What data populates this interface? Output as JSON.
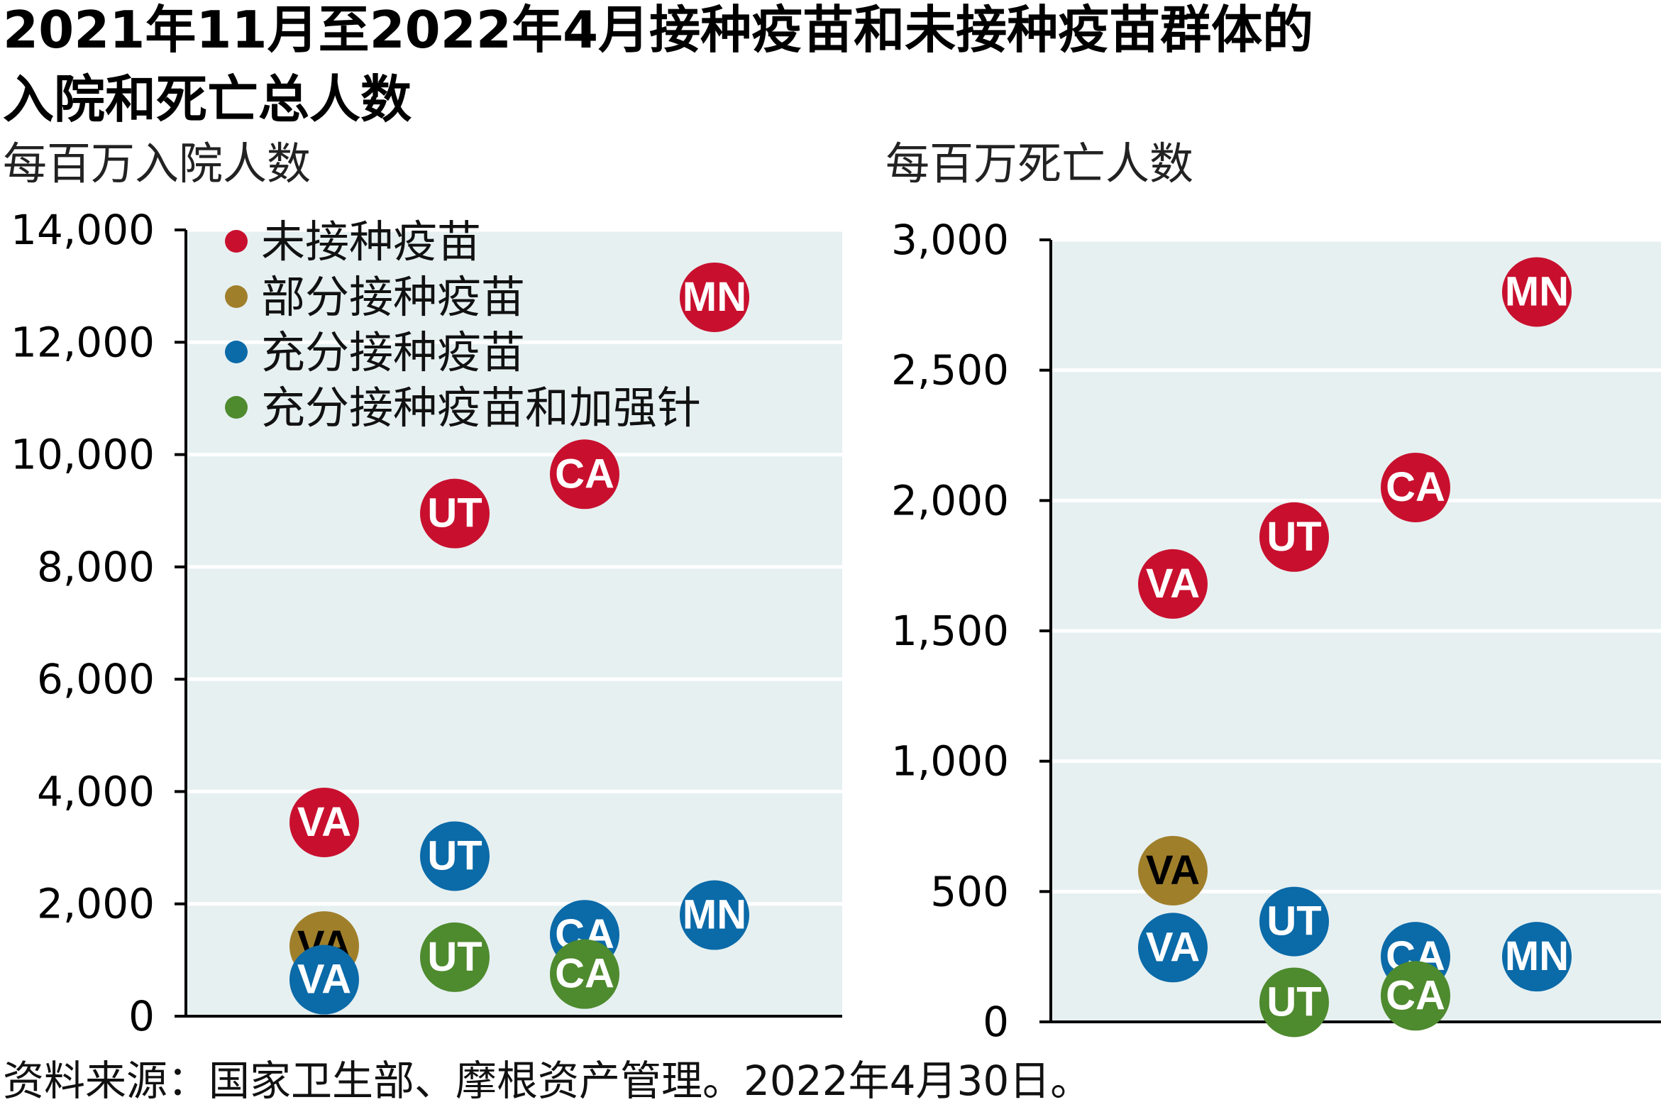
{
  "title_line1": "2021年11月至2022年4月接种疫苗和未接种疫苗群体的",
  "title_line2": "入院和死亡总人数",
  "source": "资料来源：国家卫生部、摩根资产管理。2022年4月30日。",
  "colors": {
    "unvaccinated": "#c8102e",
    "partial": "#a07f2b",
    "full": "#0b6aa8",
    "booster": "#4e8a2e",
    "plot_bg": "#e6f0f1"
  },
  "legend": [
    {
      "label": "未接种疫苗",
      "color": "#c8102e"
    },
    {
      "label": "部分接种疫苗",
      "color": "#a07f2b"
    },
    {
      "label": "充分接种疫苗",
      "color": "#0b6aa8"
    },
    {
      "label": "充分接种疫苗和加强针",
      "color": "#4e8a2e"
    }
  ],
  "chart_data": [
    {
      "type": "scatter",
      "title": "",
      "ylabel": "每百万入院人数",
      "ylim": [
        0,
        14000
      ],
      "yticks": [
        0,
        2000,
        4000,
        6000,
        8000,
        10000,
        12000,
        14000
      ],
      "ytick_labels": [
        "0",
        "2,000",
        "4,000",
        "6,000",
        "8,000",
        "10,000",
        "12,000",
        "14,000"
      ],
      "categories": [
        "VA",
        "UT",
        "CA",
        "MN"
      ],
      "legend_position": "top-left",
      "series": [
        {
          "name": "未接种疫苗",
          "color": "#c8102e",
          "points": [
            {
              "label": "VA",
              "y": 3450
            },
            {
              "label": "UT",
              "y": 8950
            },
            {
              "label": "CA",
              "y": 9650
            },
            {
              "label": "MN",
              "y": 12800
            }
          ]
        },
        {
          "name": "部分接种疫苗",
          "color": "#a07f2b",
          "label_color": "#000000",
          "points": [
            {
              "label": "VA",
              "y": 1250
            }
          ]
        },
        {
          "name": "充分接种疫苗",
          "color": "#0b6aa8",
          "points": [
            {
              "label": "VA",
              "y": 650
            },
            {
              "label": "UT",
              "y": 2850
            },
            {
              "label": "CA",
              "y": 1450
            },
            {
              "label": "MN",
              "y": 1800
            }
          ]
        },
        {
          "name": "充分接种疫苗和加强针",
          "color": "#4e8a2e",
          "points": [
            {
              "label": "UT",
              "y": 1050
            },
            {
              "label": "CA",
              "y": 750
            }
          ]
        }
      ]
    },
    {
      "type": "scatter",
      "title": "",
      "ylabel": "每百万死亡人数",
      "ylim": [
        0,
        3000
      ],
      "yticks": [
        0,
        500,
        1000,
        1500,
        2000,
        2500,
        3000
      ],
      "ytick_labels": [
        "0",
        "500",
        "1,000",
        "1,500",
        "2,000",
        "2,500",
        "3,000"
      ],
      "categories": [
        "VA",
        "UT",
        "CA",
        "MN"
      ],
      "series": [
        {
          "name": "未接种疫苗",
          "color": "#c8102e",
          "points": [
            {
              "label": "VA",
              "y": 1680
            },
            {
              "label": "UT",
              "y": 1860
            },
            {
              "label": "CA",
              "y": 2050
            },
            {
              "label": "MN",
              "y": 2800
            }
          ]
        },
        {
          "name": "部分接种疫苗",
          "color": "#a07f2b",
          "label_color": "#000000",
          "points": [
            {
              "label": "VA",
              "y": 580
            }
          ]
        },
        {
          "name": "充分接种疫苗",
          "color": "#0b6aa8",
          "points": [
            {
              "label": "VA",
              "y": 285
            },
            {
              "label": "UT",
              "y": 385
            },
            {
              "label": "CA",
              "y": 250
            },
            {
              "label": "MN",
              "y": 250
            }
          ]
        },
        {
          "name": "充分接种疫苗和加强针",
          "color": "#4e8a2e",
          "points": [
            {
              "label": "UT",
              "y": 75
            },
            {
              "label": "CA",
              "y": 100
            }
          ]
        }
      ]
    }
  ]
}
